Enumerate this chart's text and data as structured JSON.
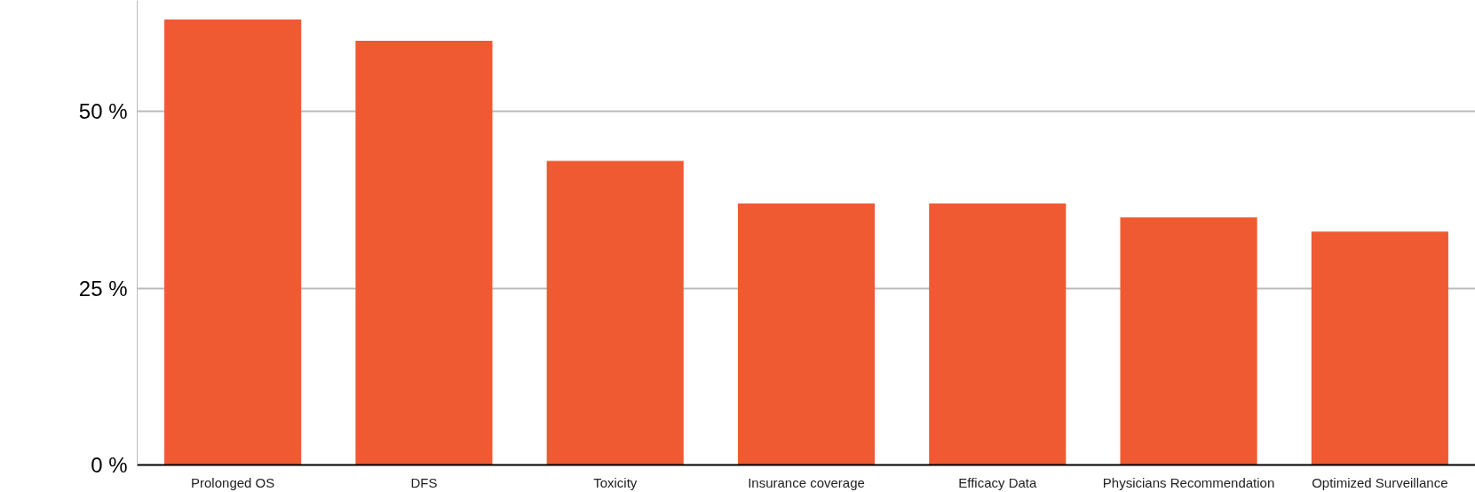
{
  "chart_data": {
    "type": "bar",
    "categories": [
      "Prolonged OS",
      "DFS",
      "Toxicity",
      "Insurance coverage",
      "Efficacy Data",
      "Physicians Recommendation",
      "Optimized Surveillance"
    ],
    "values": [
      63,
      60,
      43,
      37,
      37,
      35,
      33
    ],
    "color": "#ef5a33",
    "ylim": [
      0,
      65.7
    ],
    "yticks": [
      {
        "value": 0,
        "label": "0 %"
      },
      {
        "value": 25,
        "label": "25 %"
      },
      {
        "value": 50,
        "label": "50 %"
      }
    ],
    "grid": "y"
  }
}
